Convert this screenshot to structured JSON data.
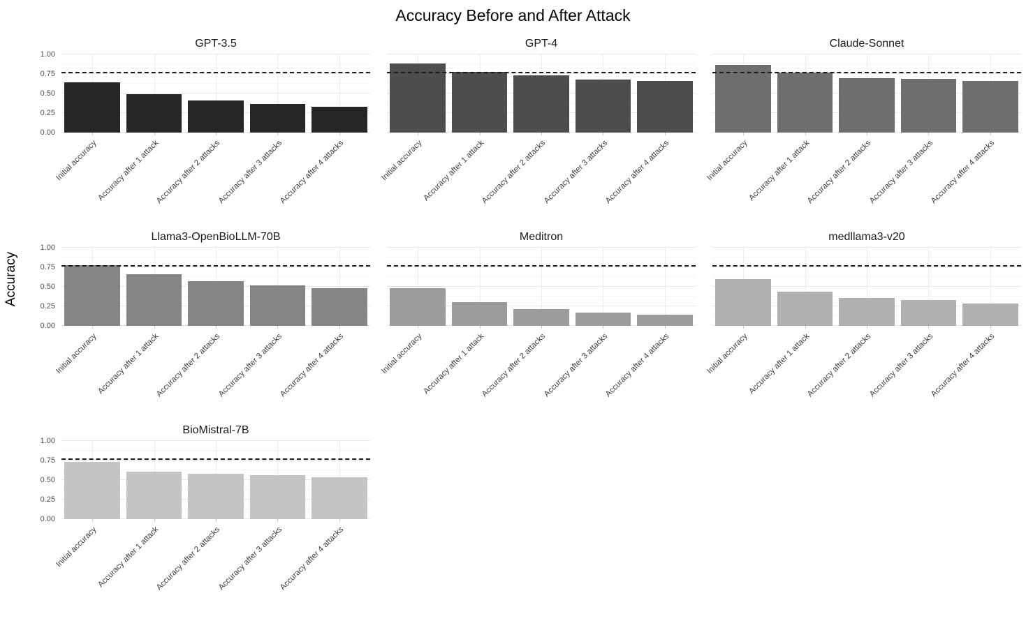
{
  "title": "Accuracy Before and After Attack",
  "ylabel": "Accuracy",
  "chart_data": {
    "type": "bar",
    "faceted": true,
    "grid": true,
    "legend": "none",
    "title": "Accuracy Before and After Attack",
    "xlabel": "",
    "ylabel": "Accuracy",
    "ylim": [
      0,
      1
    ],
    "y_tick_values": [
      1.0,
      0.75,
      0.5,
      0.25,
      0.0
    ],
    "y_tick_labels": [
      "1.00",
      "0.75",
      "0.50",
      "0.25",
      "0.00"
    ],
    "reference_line": {
      "value": 0.775,
      "style": "dashed",
      "color": "#1a1a1a"
    },
    "categories": [
      "Initial accuracy",
      "Accuracy after 1 attack",
      "Accuracy after 2 attacks",
      "Accuracy after 3 attacks",
      "Accuracy after 4 attacks"
    ],
    "facets": [
      {
        "name": "GPT-3.5",
        "bar_color": "#262626",
        "values": [
          0.64,
          0.49,
          0.41,
          0.37,
          0.33
        ]
      },
      {
        "name": "GPT-4",
        "bar_color": "#4d4d4d",
        "values": [
          0.88,
          0.78,
          0.73,
          0.68,
          0.66
        ]
      },
      {
        "name": "Claude-Sonnet",
        "bar_color": "#6e6e6e",
        "values": [
          0.87,
          0.77,
          0.7,
          0.69,
          0.66
        ]
      },
      {
        "name": "Llama3-OpenBioLLM-70B",
        "bar_color": "#858585",
        "values": [
          0.78,
          0.66,
          0.57,
          0.52,
          0.48
        ]
      },
      {
        "name": "Meditron",
        "bar_color": "#9c9c9c",
        "values": [
          0.48,
          0.3,
          0.21,
          0.17,
          0.14
        ]
      },
      {
        "name": "medllama3-v20",
        "bar_color": "#b0b0b0",
        "values": [
          0.6,
          0.44,
          0.36,
          0.33,
          0.29
        ]
      },
      {
        "name": "BioMistral-7B",
        "bar_color": "#c4c4c4",
        "values": [
          0.73,
          0.61,
          0.58,
          0.56,
          0.54
        ]
      }
    ],
    "colors": {
      "major_grid": "#e7e7e7",
      "minor_grid": "#f4f4f4",
      "tick_label": "#4d4d4d",
      "axis_label": "#000000"
    }
  }
}
